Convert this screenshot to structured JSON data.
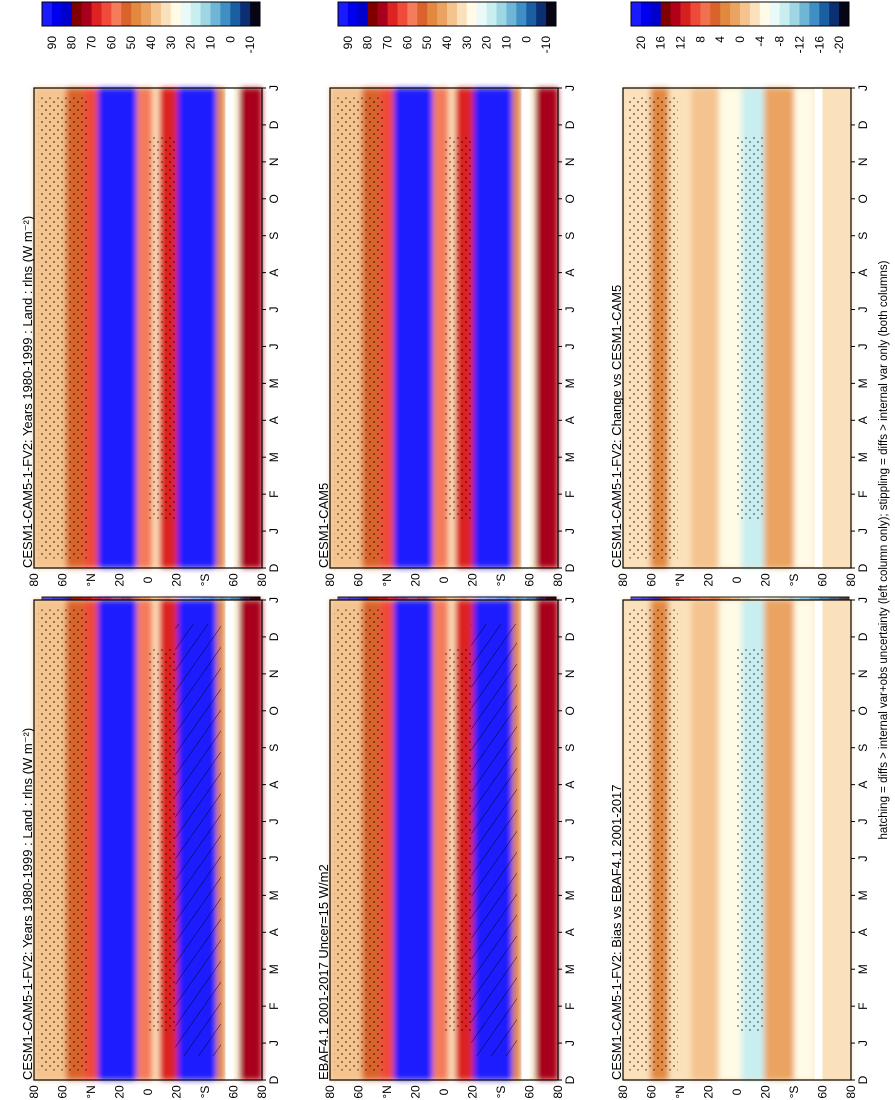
{
  "footer_note": "hatching = diffs > internal var+obs uncertainty (left column only); stippling = diffs > internal var only (both columns)",
  "palettes": {
    "main": [
      "#1a1aff",
      "#0000ee",
      "#0000cc",
      "#800000",
      "#a8001c",
      "#dd2222",
      "#f04a3a",
      "#f47c5a",
      "#d9632b",
      "#e2883f",
      "#eaa360",
      "#f4c38e",
      "#fbe1bb",
      "#fffbe6",
      "#eafaf8",
      "#c8eef0",
      "#9ed6e3",
      "#6fb5d6",
      "#3f8fc4",
      "#1b5fa3",
      "#0c2f73",
      "#050515"
    ],
    "diff": [
      "#1a1aff",
      "#0000ee",
      "#0000cc",
      "#800000",
      "#b3001a",
      "#d62020",
      "#ee4a3a",
      "#f07050",
      "#d9632b",
      "#e2883f",
      "#eaa360",
      "#f4c38e",
      "#fbe1bb",
      "#fffbe6",
      "#eafaf8",
      "#c8eef0",
      "#9ed6e3",
      "#6fb5d6",
      "#3f8fc4",
      "#1b5fa3",
      "#0c2f73",
      "#050515"
    ]
  },
  "chart_data": [
    {
      "type": "heatmap",
      "panel": "top-left",
      "title": "CESM1-CAM5-1-FV2: Years 1980-1999 : Land : rlns (W m⁻²)",
      "x_labels": [
        "D",
        "J",
        "F",
        "M",
        "A",
        "M",
        "J",
        "J",
        "A",
        "S",
        "O",
        "N",
        "D",
        "J"
      ],
      "y_labels": [
        "80",
        "60",
        "°N",
        "20",
        "0",
        "20",
        "°S",
        "60",
        "80"
      ],
      "colorbar_labels": [
        "90",
        "80",
        "70",
        "60",
        "50",
        "40",
        "30",
        "20",
        "10",
        "0",
        "-10"
      ],
      "palette": "main",
      "pattern": [
        "hatch",
        "stipple"
      ]
    },
    {
      "type": "heatmap",
      "panel": "top-right",
      "title": "CESM1-CAM5-1-FV2: Years 1980-1999 : Land : rlns (W m⁻²)",
      "x_labels": [
        "D",
        "J",
        "F",
        "M",
        "A",
        "M",
        "J",
        "J",
        "A",
        "S",
        "O",
        "N",
        "D",
        "J"
      ],
      "y_labels": [
        "80",
        "60",
        "°N",
        "20",
        "0",
        "20",
        "°S",
        "60",
        "80"
      ],
      "colorbar_labels": [
        "90",
        "80",
        "70",
        "60",
        "50",
        "40",
        "30",
        "20",
        "10",
        "0",
        "-10"
      ],
      "palette": "main",
      "pattern": [
        "stipple"
      ]
    },
    {
      "type": "heatmap",
      "panel": "middle-left",
      "title": "EBAF4.1 2001-2017 Uncer=15 W/m2",
      "x_labels": [
        "D",
        "J",
        "F",
        "M",
        "A",
        "M",
        "J",
        "J",
        "A",
        "S",
        "O",
        "N",
        "D",
        "J"
      ],
      "y_labels": [
        "80",
        "60",
        "°N",
        "20",
        "0",
        "20",
        "°S",
        "60",
        "80"
      ],
      "colorbar_labels": [
        "90",
        "80",
        "70",
        "60",
        "50",
        "40",
        "30",
        "20",
        "10",
        "0",
        "-10"
      ],
      "palette": "main",
      "pattern": [
        "hatch",
        "stipple"
      ]
    },
    {
      "type": "heatmap",
      "panel": "middle-right",
      "title": "CESM1-CAM5",
      "x_labels": [
        "D",
        "J",
        "F",
        "M",
        "A",
        "M",
        "J",
        "J",
        "A",
        "S",
        "O",
        "N",
        "D",
        "J"
      ],
      "y_labels": [
        "80",
        "60",
        "°N",
        "20",
        "0",
        "20",
        "°S",
        "60",
        "80"
      ],
      "colorbar_labels": [
        "90",
        "80",
        "70",
        "60",
        "50",
        "40",
        "30",
        "20",
        "10",
        "0",
        "-10"
      ],
      "palette": "main",
      "pattern": [
        "stipple"
      ]
    },
    {
      "type": "heatmap",
      "panel": "bottom-left",
      "title": "CESM1-CAM5-1-FV2: Bias vs EBAF4.1 2001-2017",
      "x_labels": [
        "D",
        "J",
        "F",
        "M",
        "A",
        "M",
        "J",
        "J",
        "A",
        "S",
        "O",
        "N",
        "D",
        "J"
      ],
      "y_labels": [
        "80",
        "60",
        "°N",
        "20",
        "0",
        "20",
        "°S",
        "60",
        "80"
      ],
      "colorbar_labels": [
        "20",
        "16",
        "12",
        "8",
        "4",
        "0",
        "-4",
        "-8",
        "-12",
        "-16",
        "-20"
      ],
      "palette": "diff",
      "pattern": [
        "stipple"
      ]
    },
    {
      "type": "heatmap",
      "panel": "bottom-right",
      "title": "CESM1-CAM5-1-FV2: Change vs CESM1-CAM5",
      "x_labels": [
        "D",
        "J",
        "F",
        "M",
        "A",
        "M",
        "J",
        "J",
        "A",
        "S",
        "O",
        "N",
        "D",
        "J"
      ],
      "y_labels": [
        "80",
        "60",
        "°N",
        "20",
        "0",
        "20",
        "°S",
        "60",
        "80"
      ],
      "colorbar_labels": [
        "20",
        "16",
        "12",
        "8",
        "4",
        "0",
        "-4",
        "-8",
        "-12",
        "-16",
        "-20"
      ],
      "palette": "diff",
      "pattern": [
        "stipple"
      ]
    }
  ]
}
